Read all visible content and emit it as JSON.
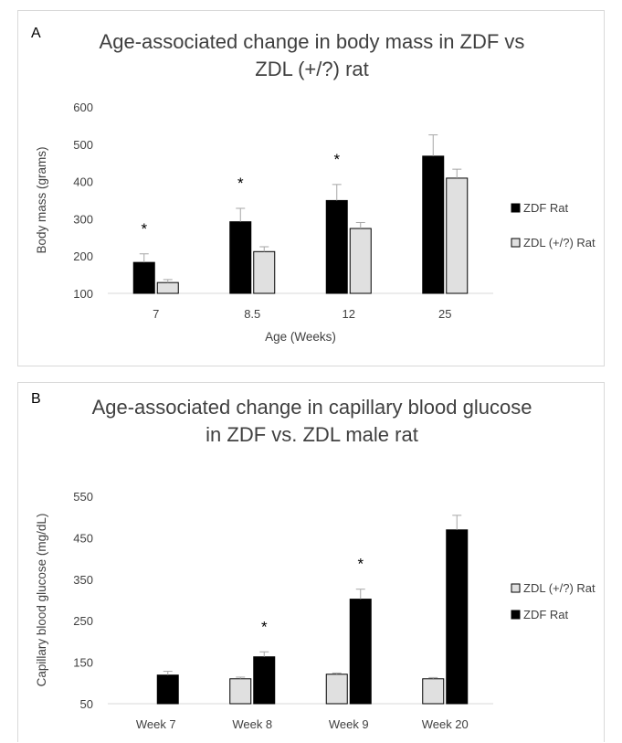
{
  "panels": [
    {
      "letter": "A",
      "title_line1": "Age-associated change in body mass in ZDF vs",
      "title_line2": "ZDL (+/?) rat"
    },
    {
      "letter": "B",
      "title_line1": "Age-associated change in capillary blood glucose",
      "title_line2": "in ZDF vs. ZDL male rat"
    }
  ],
  "colors": {
    "zdf": "#000000",
    "zdl": "#e0e0e0",
    "outline": "#000000",
    "axis": "#d9d9d9"
  },
  "chart_data": [
    {
      "type": "bar",
      "title": "Age-associated change in body mass in ZDF vs ZDL (+/?) rat",
      "xlabel": "Age (Weeks)",
      "ylabel": "Body mass (grams)",
      "ylim": [
        100,
        600
      ],
      "yticks": [
        100,
        200,
        300,
        400,
        500,
        600
      ],
      "categories": [
        "7",
        "8.5",
        "12",
        "25"
      ],
      "series": [
        {
          "name": "ZDF Rat",
          "color": "#000000",
          "values": [
            183,
            292,
            349,
            468
          ],
          "errors": [
            23,
            36,
            43,
            57
          ]
        },
        {
          "name": "ZDL (+/?) Rat",
          "color": "#e0e0e0",
          "values": [
            129,
            212,
            274,
            409
          ],
          "errors": [
            8,
            13,
            16,
            24
          ]
        }
      ],
      "significance": [
        {
          "category": "7",
          "label": "*"
        },
        {
          "category": "8.5",
          "label": "*"
        },
        {
          "category": "12",
          "label": "*"
        }
      ],
      "grid": false,
      "legend_placement": "right"
    },
    {
      "type": "bar",
      "title": "Age-associated change in capillary blood glucose in ZDF vs. ZDL male rat",
      "xlabel": "",
      "ylabel": "Capillary blood glucose (mg/dL)",
      "ylim": [
        50,
        550
      ],
      "yticks": [
        50,
        150,
        250,
        350,
        450,
        550
      ],
      "categories": [
        "Week 7",
        "Week 8",
        "Week 9",
        "Week 20"
      ],
      "series": [
        {
          "name": "ZDL (+/?) Rat",
          "color": "#e0e0e0",
          "values": [
            null,
            110,
            121,
            110
          ],
          "errors": [
            null,
            4,
            3,
            3
          ]
        },
        {
          "name": "ZDF Rat",
          "color": "#000000",
          "values": [
            119,
            163,
            302,
            469
          ],
          "errors": [
            9,
            12,
            24,
            35
          ]
        }
      ],
      "significance": [
        {
          "category": "Week 8",
          "label": "*"
        },
        {
          "category": "Week 9",
          "label": "*"
        }
      ],
      "grid": false,
      "legend_placement": "right"
    }
  ]
}
